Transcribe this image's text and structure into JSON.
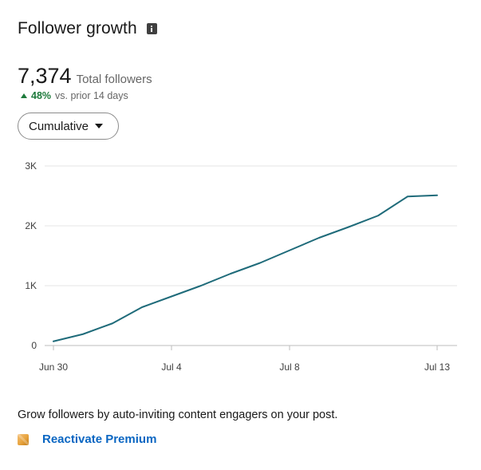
{
  "header": {
    "title": "Follower growth",
    "info_icon": "info-icon"
  },
  "metric": {
    "value": "7,374",
    "label": "Total followers",
    "change_pct": "48%",
    "change_label": "vs. prior 14 days",
    "change_direction": "up",
    "change_color": "#1d7a3b"
  },
  "dropdown": {
    "selected": "Cumulative",
    "icon": "caret-down-icon"
  },
  "chart_data": {
    "type": "line",
    "x": [
      "Jun 30",
      "Jul 1",
      "Jul 2",
      "Jul 3",
      "Jul 4",
      "Jul 5",
      "Jul 6",
      "Jul 7",
      "Jul 8",
      "Jul 9",
      "Jul 10",
      "Jul 11",
      "Jul 12",
      "Jul 13"
    ],
    "series": [
      {
        "values": [
          70,
          190,
          370,
          640,
          820,
          1000,
          1200,
          1380,
          1590,
          1800,
          1980,
          2170,
          2490,
          2510
        ],
        "color": "#1f6b7a"
      }
    ],
    "x_tick_labels": [
      "Jun 30",
      "Jul 4",
      "Jul 8",
      "Jul 13"
    ],
    "x_tick_indices": [
      0,
      4,
      8,
      13
    ],
    "y_ticks": [
      0,
      1000,
      2000,
      3000
    ],
    "y_tick_labels": [
      "0",
      "1K",
      "2K",
      "3K"
    ],
    "ylim": [
      0,
      3000
    ],
    "grid": true,
    "xlabel": "",
    "ylabel": ""
  },
  "promo": {
    "text": "Grow followers by auto-inviting content engagers on your post.",
    "link_label": "Reactivate Premium",
    "link_icon": "premium-icon",
    "link_color": "#0a66c2"
  }
}
